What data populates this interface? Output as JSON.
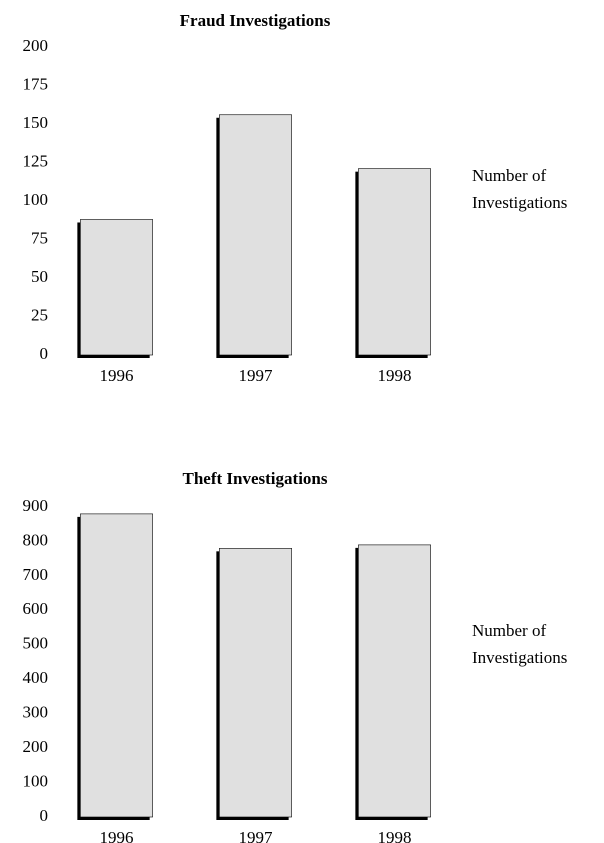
{
  "chart_data": [
    {
      "type": "bar",
      "title": "Fraud Investigations",
      "categories": [
        "1996",
        "1997",
        "1998"
      ],
      "series": [
        {
          "name": "Number of Investigations",
          "color": "#e0e0e0",
          "values": [
            88,
            156,
            121
          ]
        }
      ],
      "ylim": [
        0,
        200
      ],
      "yticks": [
        0,
        25,
        50,
        75,
        100,
        125,
        150,
        175,
        200
      ],
      "grid": false,
      "legend": "right"
    },
    {
      "type": "bar",
      "title": "Theft Investigations",
      "categories": [
        "1996",
        "1997",
        "1998"
      ],
      "series": [
        {
          "name": "Number of Investigations",
          "color": "#e0e0e0",
          "values": [
            880,
            780,
            790
          ]
        }
      ],
      "ylim": [
        0,
        900
      ],
      "yticks": [
        0,
        100,
        200,
        300,
        400,
        500,
        600,
        700,
        800,
        900
      ],
      "grid": false,
      "legend": "right"
    }
  ]
}
